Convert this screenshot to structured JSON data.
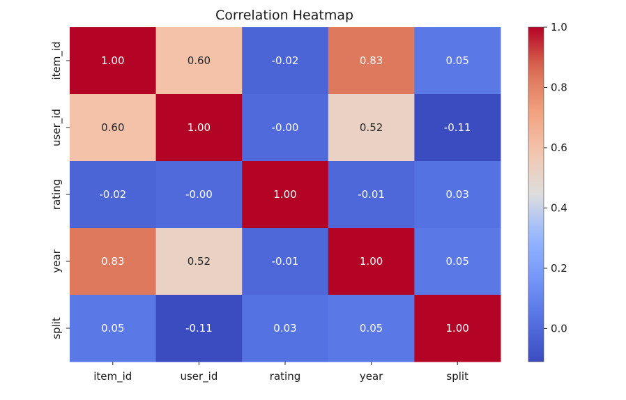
{
  "chart_data": {
    "type": "heatmap",
    "title": "Correlation Heatmap",
    "xlabel": "",
    "ylabel": "",
    "x_categories": [
      "item_id",
      "user_id",
      "rating",
      "year",
      "split"
    ],
    "y_categories": [
      "item_id",
      "user_id",
      "rating",
      "year",
      "split"
    ],
    "values": [
      [
        1.0,
        0.6,
        -0.02,
        0.83,
        0.05
      ],
      [
        0.6,
        1.0,
        -0.0,
        0.52,
        -0.11
      ],
      [
        -0.02,
        -0.0,
        1.0,
        -0.01,
        0.03
      ],
      [
        0.83,
        0.52,
        -0.01,
        1.0,
        0.05
      ],
      [
        0.05,
        -0.11,
        0.03,
        0.05,
        1.0
      ]
    ],
    "cell_labels": [
      [
        "1.00",
        "0.60",
        "-0.02",
        "0.83",
        "0.05"
      ],
      [
        "0.60",
        "1.00",
        "-0.00",
        "0.52",
        "-0.11"
      ],
      [
        "-0.02",
        "-0.00",
        "1.00",
        "-0.01",
        "0.03"
      ],
      [
        "0.83",
        "0.52",
        "-0.01",
        "1.00",
        "0.05"
      ],
      [
        "0.05",
        "-0.11",
        "0.03",
        "0.05",
        "1.00"
      ]
    ],
    "colormap": "coolwarm",
    "color_range": [
      -0.11,
      1.0
    ],
    "colorbar_ticks": [
      0.0,
      0.2,
      0.4,
      0.6,
      0.8,
      1.0
    ],
    "colorbar_tick_labels": [
      "0.0",
      "0.2",
      "0.4",
      "0.6",
      "0.8",
      "1.0"
    ],
    "colorbar_position": "right"
  }
}
